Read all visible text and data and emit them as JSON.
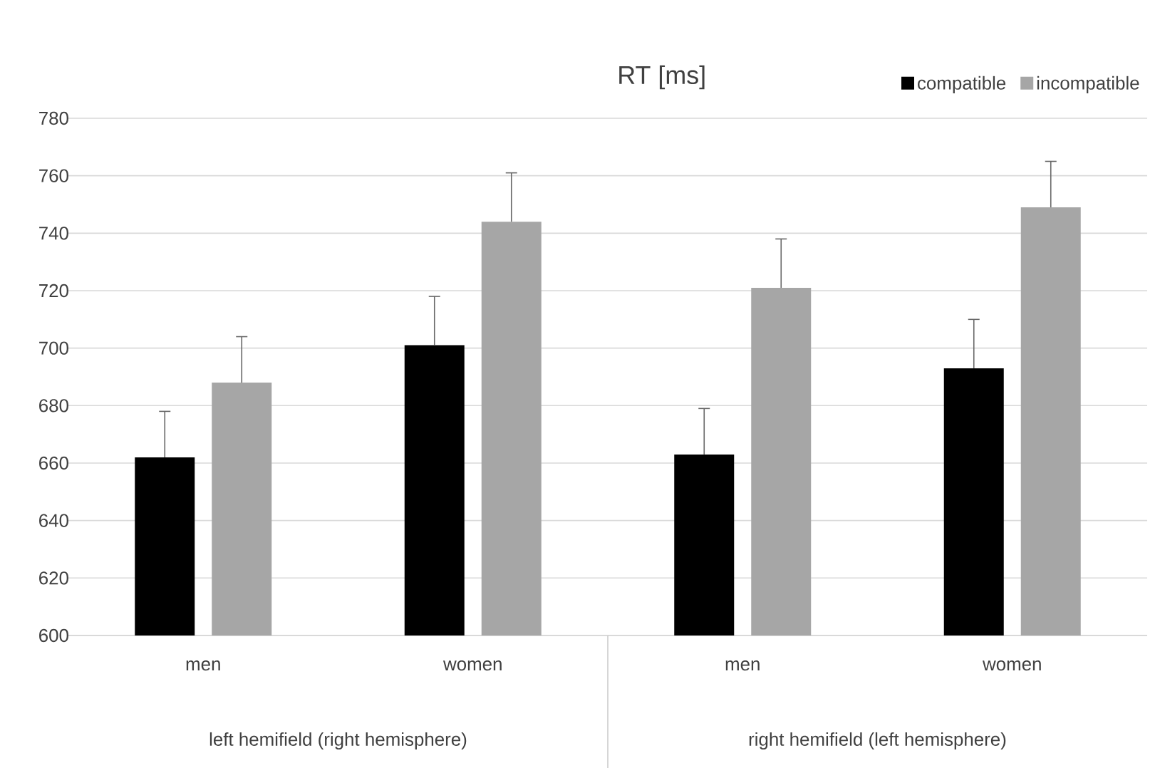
{
  "chart_data": {
    "type": "bar",
    "title": "RT [ms]",
    "categories": [
      "men",
      "women",
      "men",
      "women"
    ],
    "series": [
      {
        "name": "compatible",
        "color": "#000000",
        "values": [
          662,
          701,
          663,
          693
        ],
        "errors": [
          [
            662,
            678
          ],
          [
            701,
            718
          ],
          [
            663,
            679
          ],
          [
            693,
            710
          ]
        ]
      },
      {
        "name": "incompatible",
        "color": "#a6a6a6",
        "values": [
          688,
          744,
          721,
          749
        ],
        "errors": [
          [
            688,
            704
          ],
          [
            744,
            761
          ],
          [
            721,
            738
          ],
          [
            749,
            765
          ]
        ]
      }
    ],
    "annotations": [
      "left hemifield (right hemisphere)",
      "right hemifield (left hemisphere)"
    ],
    "ylim": [
      600,
      780
    ],
    "yticks": [
      600,
      620,
      640,
      660,
      680,
      700,
      720,
      740,
      760,
      780
    ],
    "grid": "y",
    "legend": "top right"
  }
}
